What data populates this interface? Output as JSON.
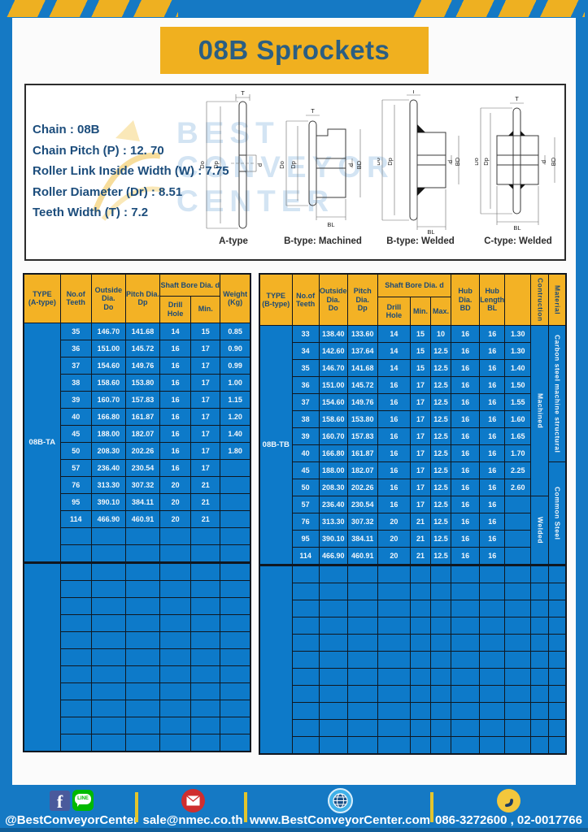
{
  "page": {
    "title": "08B Sprockets"
  },
  "colors": {
    "frame_blue": "#1579c4",
    "table_blue": "#0d7ac9",
    "accent_yellow": "#f0b01f",
    "header_yellow": "#f3b225",
    "header_text_navy": "#1d4a75",
    "title_navy": "#2b5e82",
    "divider_yellow": "#e3c52d"
  },
  "specs": [
    {
      "label": "Chain",
      "value": "08B"
    },
    {
      "label": "Chain Pitch (P)",
      "value": "12. 70"
    },
    {
      "label": "Roller Link Inside Width (W)",
      "value": "7.75"
    },
    {
      "label": "Roller Diameter (Dr)",
      "value": "8.51"
    },
    {
      "label": "Teeth Width (T)",
      "value": "7.2"
    }
  ],
  "diagrams": {
    "watermark_lines": [
      "BEST",
      "CONVEYOR",
      "CENTER"
    ],
    "captions": [
      "A-type",
      "B-type: Machined",
      "B-type: Welded",
      "C-type: Welded"
    ],
    "dim_labels": {
      "t": "T",
      "outside": "Do",
      "pitch": "Dp",
      "bore": "d",
      "hub_dia": "BD",
      "hub_len": "BL"
    }
  },
  "table_a": {
    "type_value": "08B-TA",
    "headers": {
      "type": "TYPE\n(A-type)",
      "teeth": "No.of\nTeeth",
      "outside": "Outside\nDia.\nDo",
      "pitch": "Pitch Dia.\nDp",
      "shaft": "Shaft Bore Dia. d",
      "drill": "Drill Hole",
      "min": "Min.",
      "weight": "Weight\n(Kg)"
    },
    "rows": [
      [
        "35",
        "146.70",
        "141.68",
        "14",
        "15",
        "0.85"
      ],
      [
        "36",
        "151.00",
        "145.72",
        "16",
        "17",
        "0.90"
      ],
      [
        "37",
        "154.60",
        "149.76",
        "16",
        "17",
        "0.99"
      ],
      [
        "38",
        "158.60",
        "153.80",
        "16",
        "17",
        "1.00"
      ],
      [
        "39",
        "160.70",
        "157.83",
        "16",
        "17",
        "1.15"
      ],
      [
        "40",
        "166.80",
        "161.87",
        "16",
        "17",
        "1.20"
      ],
      [
        "45",
        "188.00",
        "182.07",
        "16",
        "17",
        "1.40"
      ],
      [
        "50",
        "208.30",
        "202.26",
        "16",
        "17",
        "1.80"
      ],
      [
        "57",
        "236.40",
        "230.54",
        "16",
        "17",
        ""
      ],
      [
        "76",
        "313.30",
        "307.32",
        "20",
        "21",
        ""
      ],
      [
        "95",
        "390.10",
        "384.11",
        "20",
        "21",
        ""
      ],
      [
        "114",
        "466.90",
        "460.91",
        "20",
        "21",
        ""
      ]
    ],
    "blank_rows_block1": 2,
    "blank_rows_block2": 11
  },
  "table_b": {
    "type_value": "08B-TB",
    "headers": {
      "type": "TYPE\n(B-type)",
      "teeth": "No.of\nTeeth",
      "outside": "Outside\nDia.\nDo",
      "pitch": "Pitch Dia.\nDp",
      "shaft": "Shaft Bore Dia. d",
      "drill": "Drill Hole",
      "min": "Min.",
      "max": "Max.",
      "hub_dia": "Hub Dia.\nBD",
      "hub_len": "Hub\nLength\nBL",
      "construction": "Contruction",
      "material": "Material"
    },
    "rows": [
      [
        "33",
        "138.40",
        "133.60",
        "14",
        "15",
        "10",
        "16",
        "16",
        "1.30"
      ],
      [
        "34",
        "142.60",
        "137.64",
        "14",
        "15",
        "12.5",
        "16",
        "16",
        "1.30"
      ],
      [
        "35",
        "146.70",
        "141.68",
        "14",
        "15",
        "12.5",
        "16",
        "16",
        "1.40"
      ],
      [
        "36",
        "151.00",
        "145.72",
        "16",
        "17",
        "12.5",
        "16",
        "16",
        "1.50"
      ],
      [
        "37",
        "154.60",
        "149.76",
        "16",
        "17",
        "12.5",
        "16",
        "16",
        "1.55"
      ],
      [
        "38",
        "158.60",
        "153.80",
        "16",
        "17",
        "12.5",
        "16",
        "16",
        "1.60"
      ],
      [
        "39",
        "160.70",
        "157.83",
        "16",
        "17",
        "12.5",
        "16",
        "16",
        "1.65"
      ],
      [
        "40",
        "166.80",
        "161.87",
        "16",
        "17",
        "12.5",
        "16",
        "16",
        "1.70"
      ],
      [
        "45",
        "188.00",
        "182.07",
        "16",
        "17",
        "12.5",
        "16",
        "16",
        "2.25"
      ],
      [
        "50",
        "208.30",
        "202.26",
        "16",
        "17",
        "12.5",
        "16",
        "16",
        "2.60"
      ],
      [
        "57",
        "236.40",
        "230.54",
        "16",
        "17",
        "12.5",
        "16",
        "16",
        ""
      ],
      [
        "76",
        "313.30",
        "307.32",
        "20",
        "21",
        "12.5",
        "16",
        "16",
        ""
      ],
      [
        "95",
        "390.10",
        "384.11",
        "20",
        "21",
        "12.5",
        "16",
        "16",
        ""
      ],
      [
        "114",
        "466.90",
        "460.91",
        "20",
        "21",
        "12.5",
        "16",
        "16",
        ""
      ]
    ],
    "construction_groups": [
      {
        "label": "Machined",
        "span": 10
      },
      {
        "label": "Welded",
        "span": 4
      }
    ],
    "material_groups": [
      {
        "label": "Carbon steel  machine structural",
        "span": 8
      },
      {
        "label": "Common  Steel",
        "span": 6
      }
    ],
    "blank_rows_block2": 11
  },
  "footer": {
    "social_text": "@BestConveyorCenter",
    "facebook_glyph": "f",
    "line_label": "LINE",
    "email": "sale@nmec.co.th",
    "website": "www.BestConveyorCenter.com",
    "phone": "086-3272600 , 02-0017766"
  }
}
